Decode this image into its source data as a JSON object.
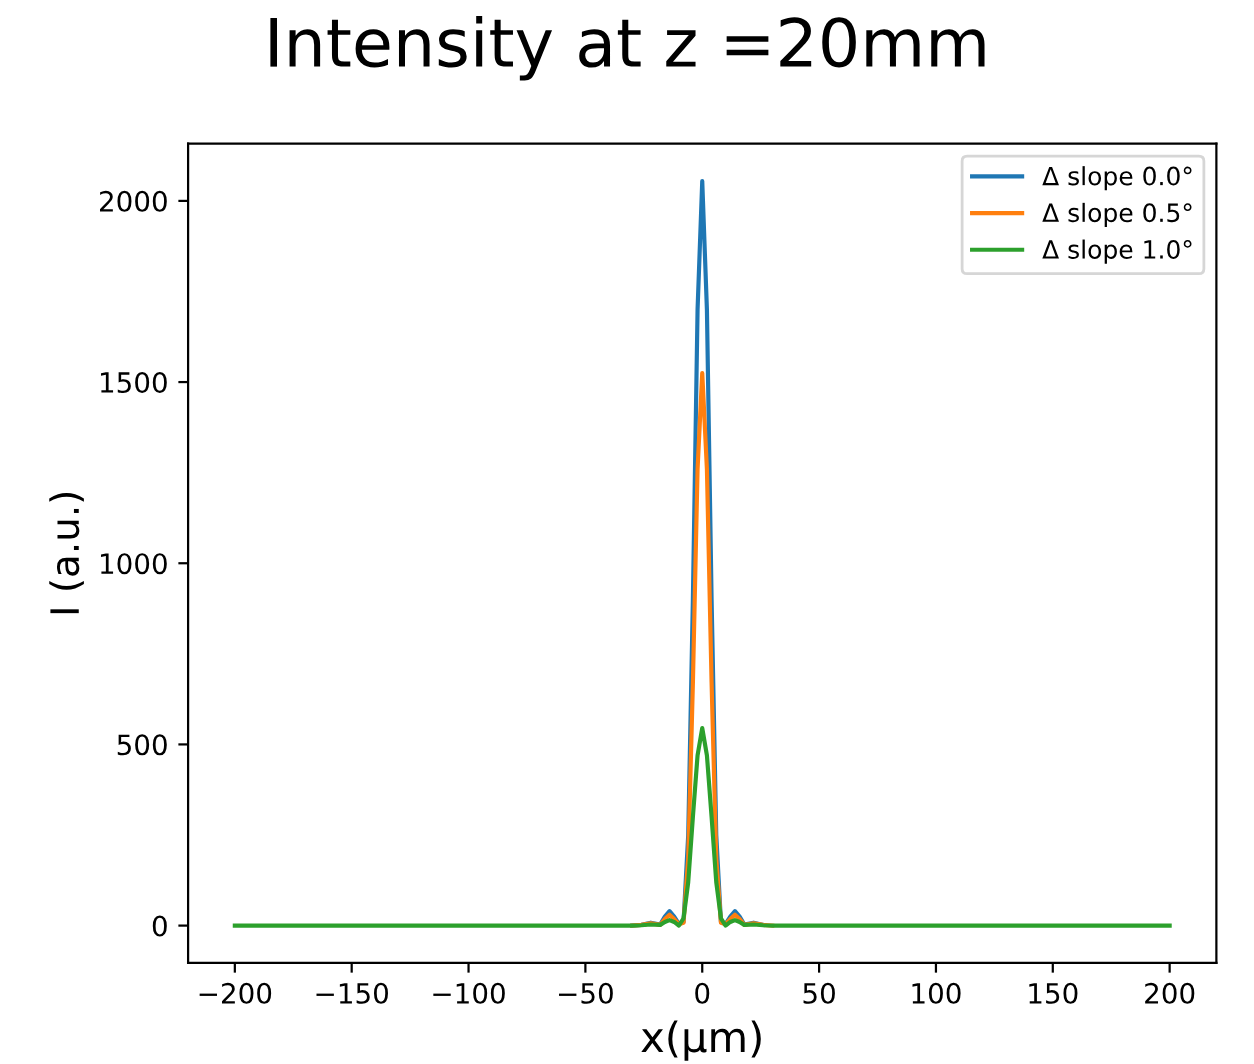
{
  "chart_data": {
    "type": "line",
    "title": "Intensity at z =20mm",
    "xlabel": "x(μm)",
    "ylabel": "I (a.u.)",
    "x": [
      -200,
      -50,
      -30,
      -26,
      -22,
      -18,
      -16,
      -14,
      -12,
      -10,
      -8,
      -6,
      -4,
      -2,
      0,
      2,
      4,
      6,
      8,
      10,
      12,
      14,
      16,
      18,
      22,
      26,
      30,
      50,
      200
    ],
    "series": [
      {
        "name": "Δ slope 0.0°",
        "color": "#1f77b4",
        "values": [
          null,
          null,
          0,
          2,
          8,
          3,
          25,
          40,
          25,
          5,
          10,
          250,
          900,
          1700,
          2055,
          1700,
          900,
          250,
          10,
          5,
          25,
          40,
          25,
          3,
          8,
          2,
          null,
          null,
          null
        ]
      },
      {
        "name": "Δ slope 0.5°",
        "color": "#ff7f0e",
        "values": [
          null,
          null,
          0,
          2,
          6,
          2,
          18,
          30,
          18,
          4,
          8,
          185,
          670,
          1260,
          1525,
          1260,
          670,
          185,
          8,
          4,
          18,
          30,
          18,
          2,
          6,
          2,
          0,
          null,
          null
        ]
      },
      {
        "name": "Δ slope 1.0°",
        "color": "#2ca02c",
        "values": [
          0,
          0,
          0,
          1,
          3,
          2,
          10,
          15,
          10,
          0,
          20,
          120,
          300,
          470,
          545,
          470,
          300,
          120,
          20,
          0,
          10,
          15,
          10,
          2,
          3,
          1,
          0,
          0,
          0
        ]
      }
    ],
    "xlim": [
      -220,
      220
    ],
    "ylim": [
      -103,
      2158
    ],
    "xticks": [
      -200,
      -150,
      -100,
      -50,
      0,
      50,
      100,
      150,
      200
    ],
    "yticks": [
      0,
      500,
      1000,
      1500,
      2000
    ],
    "grid": false,
    "legend": "top right",
    "marker": "none",
    "line_style": "solid"
  }
}
